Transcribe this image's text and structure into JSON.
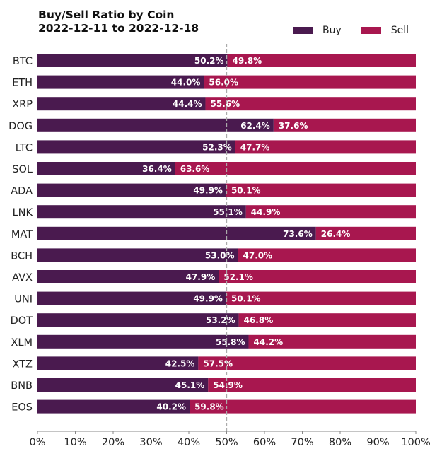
{
  "chart_data": {
    "type": "bar",
    "orientation": "horizontal",
    "stacked": true,
    "title": "Buy/Sell Ratio by Coin",
    "subtitle": "2022-12-11 to 2022-12-18",
    "xlabel": "",
    "ylabel": "",
    "xlim": [
      0,
      100
    ],
    "x_ticks": [
      "0%",
      "10%",
      "20%",
      "30%",
      "40%",
      "50%",
      "60%",
      "70%",
      "80%",
      "90%",
      "100%"
    ],
    "reference_line": {
      "x": 50,
      "style": "dashed"
    },
    "legend_position": "top-right",
    "categories": [
      "BTC",
      "ETH",
      "XRP",
      "DOG",
      "LTC",
      "SOL",
      "ADA",
      "LNK",
      "MAT",
      "BCH",
      "AVX",
      "UNI",
      "DOT",
      "XLM",
      "XTZ",
      "BNB",
      "EOS"
    ],
    "series": [
      {
        "name": "Buy",
        "color": "#4a1a4f",
        "values": [
          50.2,
          44.0,
          44.4,
          62.4,
          52.3,
          36.4,
          49.9,
          55.1,
          73.6,
          53.0,
          47.9,
          49.9,
          53.2,
          55.8,
          42.5,
          45.1,
          40.2
        ]
      },
      {
        "name": "Sell",
        "color": "#a8174f",
        "values": [
          49.8,
          56.0,
          55.6,
          37.6,
          47.7,
          63.6,
          50.1,
          44.9,
          26.4,
          47.0,
          52.1,
          50.1,
          46.8,
          44.2,
          57.5,
          54.9,
          59.8
        ]
      }
    ]
  }
}
